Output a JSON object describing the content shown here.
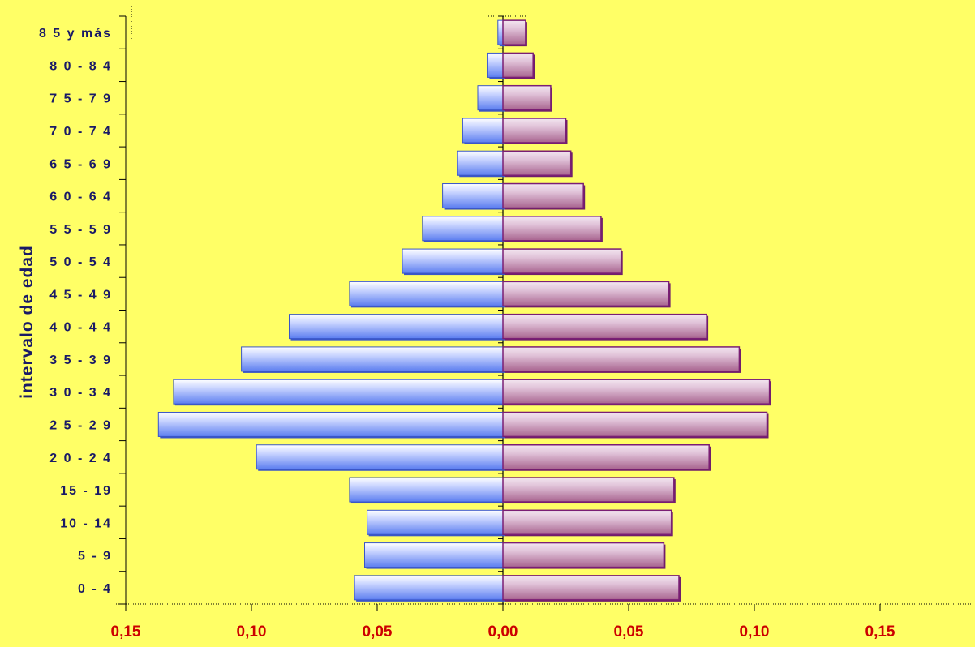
{
  "chart_data": {
    "type": "bar",
    "orientation": "horizontal",
    "layout": "population-pyramid",
    "ylabel": "intervalo de edad",
    "xlabel": "",
    "xlim": [
      -0.15,
      0.15
    ],
    "x_tick_labels": [
      "0,15",
      "0,10",
      "0,05",
      "0,00",
      "0,05",
      "0,10",
      "0,15"
    ],
    "x_tick_values": [
      -0.15,
      -0.1,
      -0.05,
      0.0,
      0.05,
      0.1,
      0.15
    ],
    "categories": [
      "0-4",
      "5-9",
      "10-14",
      "15-19",
      "20-24",
      "25-29",
      "30-34",
      "35-39",
      "40-44",
      "45-49",
      "50-54",
      "55-59",
      "60-64",
      "65-69",
      "70-74",
      "75-79",
      "80-84",
      "85 y más"
    ],
    "category_display": [
      "0 - 4",
      "5 - 9",
      "10 - 14",
      "15 - 19",
      "2 0 - 2 4",
      "2 5 - 2 9",
      "3 0 - 3 4",
      "3 5 - 3 9",
      "4 0 - 4 4",
      "4 5 - 4 9",
      "5 0 - 5 4",
      "5 5 - 5 9",
      "6 0 - 6 4",
      "6 5 - 6 9",
      "7 0 - 7 4",
      "7 5 - 7 9",
      "8 0 - 8 4",
      "8 5 y más"
    ],
    "series": [
      {
        "side": "left",
        "color": "#8fa6ff",
        "values": [
          0.059,
          0.055,
          0.054,
          0.061,
          0.098,
          0.137,
          0.131,
          0.104,
          0.085,
          0.061,
          0.04,
          0.032,
          0.024,
          0.018,
          0.016,
          0.01,
          0.006,
          0.002
        ]
      },
      {
        "side": "right",
        "color": "#b06ea6",
        "values": [
          0.07,
          0.064,
          0.067,
          0.068,
          0.082,
          0.105,
          0.106,
          0.094,
          0.081,
          0.066,
          0.047,
          0.039,
          0.032,
          0.027,
          0.025,
          0.019,
          0.012,
          0.009
        ]
      }
    ],
    "grid": false,
    "legend": "none"
  }
}
